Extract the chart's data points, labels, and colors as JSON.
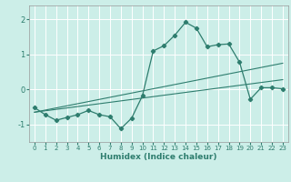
{
  "xlabel": "Humidex (Indice chaleur)",
  "background_color": "#cceee8",
  "grid_color": "#ffffff",
  "line_color": "#2e7d6e",
  "x_ticks": [
    0,
    1,
    2,
    3,
    4,
    5,
    6,
    7,
    8,
    9,
    10,
    11,
    12,
    13,
    14,
    15,
    16,
    17,
    18,
    19,
    20,
    21,
    22,
    23
  ],
  "y_ticks": [
    -1,
    0,
    1,
    2
  ],
  "ylim": [
    -1.5,
    2.4
  ],
  "xlim": [
    -0.5,
    23.5
  ],
  "curve1_x": [
    0,
    1,
    2,
    3,
    4,
    5,
    6,
    7,
    8,
    9,
    10,
    11,
    12,
    13,
    14,
    15,
    16,
    17,
    18,
    19,
    20,
    21,
    22,
    23
  ],
  "curve1_y": [
    -0.52,
    -0.72,
    -0.88,
    -0.8,
    -0.72,
    -0.6,
    -0.72,
    -0.78,
    -1.12,
    -0.82,
    -0.18,
    1.1,
    1.25,
    1.55,
    1.92,
    1.75,
    1.22,
    1.28,
    1.3,
    0.78,
    -0.28,
    0.05,
    0.05,
    0.02
  ],
  "line1_x": [
    0,
    23
  ],
  "line1_y": [
    -0.65,
    0.75
  ],
  "line2_x": [
    0,
    23
  ],
  "line2_y": [
    -0.65,
    0.28
  ]
}
